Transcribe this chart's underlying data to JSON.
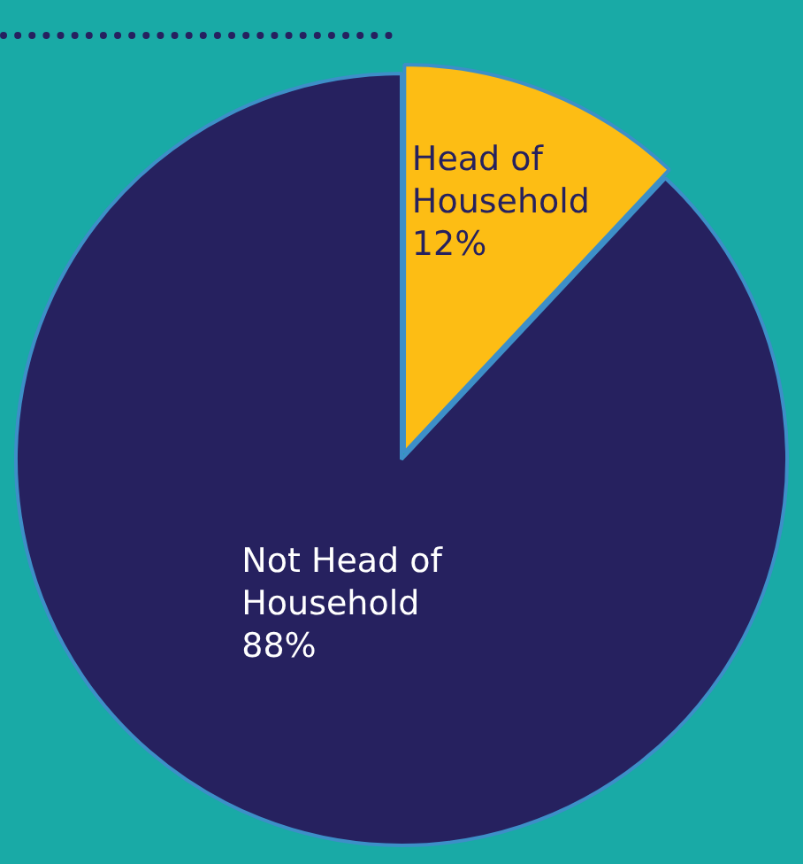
{
  "chart_data": {
    "type": "pie",
    "categories": [
      "Head of Household",
      "Not Head of Household"
    ],
    "values": [
      12,
      88
    ],
    "colors": [
      "#fdbd14",
      "#26215f"
    ],
    "value_labels": [
      "12%",
      "88%"
    ],
    "legend": false
  }
}
